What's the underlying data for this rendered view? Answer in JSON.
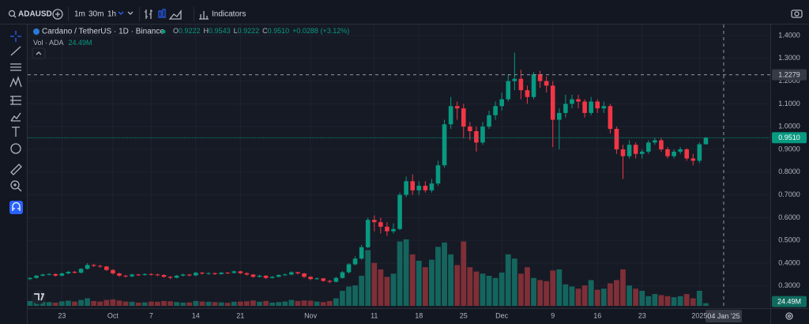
{
  "toolbar": {
    "symbol": "ADAUSD",
    "intervals": [
      "1m",
      "30m",
      "1h"
    ],
    "indicators": "Indicators"
  },
  "chart_data": {
    "type": "candlestick",
    "title": "Cardano / TetherUS · 1D · Binance",
    "legend_values": [
      {
        "key": "O",
        "value": "0.9222"
      },
      {
        "key": "H",
        "value": "0.9543"
      },
      {
        "key": "L",
        "value": "0.9222"
      },
      {
        "key": "C",
        "value": "0.9510"
      }
    ],
    "change": "+0.0288 (+3.12%)",
    "last_price_label": "0.9510",
    "up_color": "#089981",
    "down_color": "#f23645",
    "categories": [
      null,
      null,
      null,
      null,
      null,
      "23",
      null,
      null,
      null,
      null,
      null,
      null,
      null,
      "Oct",
      null,
      null,
      null,
      null,
      null,
      "7",
      null,
      null,
      null,
      null,
      null,
      null,
      "14",
      null,
      null,
      null,
      null,
      null,
      null,
      "21",
      null,
      null,
      null,
      null,
      null,
      null,
      null,
      null,
      null,
      null,
      "Nov",
      null,
      null,
      null,
      null,
      null,
      null,
      null,
      null,
      null,
      "11",
      null,
      null,
      null,
      null,
      null,
      null,
      "18",
      null,
      null,
      null,
      null,
      null,
      null,
      "25",
      null,
      null,
      null,
      null,
      null,
      "Dec",
      null,
      null,
      null,
      null,
      null,
      null,
      null,
      "9",
      null,
      null,
      null,
      null,
      null,
      null,
      "16",
      null,
      null,
      null,
      null,
      null,
      null,
      "23",
      null,
      null,
      null,
      null,
      null,
      null,
      null,
      null,
      "2025",
      null
    ],
    "open": [
      0.33,
      0.335,
      0.345,
      0.35,
      0.352,
      0.345,
      0.355,
      0.362,
      0.358,
      0.375,
      0.392,
      0.388,
      0.385,
      0.37,
      0.355,
      0.345,
      0.342,
      0.35,
      0.348,
      0.352,
      0.35,
      0.348,
      0.34,
      0.336,
      0.345,
      0.35,
      0.346,
      0.358,
      0.354,
      0.356,
      0.352,
      0.358,
      0.357,
      0.364,
      0.356,
      0.35,
      0.34,
      0.345,
      0.335,
      0.34,
      0.348,
      0.35,
      0.36,
      0.355,
      0.34,
      0.33,
      0.333,
      0.322,
      0.318,
      0.335,
      0.36,
      0.395,
      0.42,
      0.47,
      0.59,
      0.58,
      0.56,
      0.54,
      0.55,
      0.7,
      0.76,
      0.72,
      0.74,
      0.72,
      0.75,
      0.83,
      1.01,
      1.09,
      1.08,
      1.0,
      0.98,
      0.93,
      1.0,
      1.05,
      1.09,
      1.12,
      1.2,
      1.21,
      1.16,
      1.13,
      1.23,
      1.2,
      1.18,
      1.03,
      1.06,
      1.1,
      1.12,
      1.11,
      1.06,
      1.11,
      1.08,
      1.09,
      0.99,
      0.9,
      0.87,
      0.92,
      0.88,
      0.89,
      0.93,
      0.94,
      0.9,
      0.87,
      0.89,
      0.9,
      0.86,
      0.85,
      0.9222
    ],
    "high": [
      0.338,
      0.348,
      0.354,
      0.356,
      0.355,
      0.358,
      0.366,
      0.365,
      0.378,
      0.4,
      0.397,
      0.393,
      0.388,
      0.373,
      0.358,
      0.349,
      0.354,
      0.353,
      0.355,
      0.356,
      0.354,
      0.351,
      0.343,
      0.348,
      0.354,
      0.352,
      0.362,
      0.362,
      0.36,
      0.359,
      0.362,
      0.361,
      0.368,
      0.366,
      0.359,
      0.352,
      0.349,
      0.347,
      0.343,
      0.351,
      0.355,
      0.364,
      0.363,
      0.357,
      0.343,
      0.337,
      0.335,
      0.326,
      0.34,
      0.365,
      0.4,
      0.43,
      0.48,
      0.6,
      0.61,
      0.6,
      0.58,
      0.575,
      0.71,
      0.78,
      0.79,
      0.76,
      0.76,
      0.77,
      0.85,
      1.03,
      1.13,
      1.11,
      1.1,
      1.02,
      1.0,
      1.02,
      1.07,
      1.11,
      1.15,
      1.23,
      1.325,
      1.25,
      1.18,
      1.24,
      1.245,
      1.22,
      1.2,
      1.08,
      1.14,
      1.14,
      1.14,
      1.12,
      1.13,
      1.12,
      1.11,
      1.1,
      1.0,
      0.92,
      0.94,
      0.93,
      0.9,
      0.94,
      0.95,
      0.95,
      0.91,
      0.9,
      0.91,
      0.905,
      0.88,
      0.93,
      0.9543
    ],
    "low": [
      0.325,
      0.332,
      0.342,
      0.346,
      0.341,
      0.342,
      0.351,
      0.354,
      0.355,
      0.372,
      0.383,
      0.38,
      0.366,
      0.35,
      0.34,
      0.336,
      0.339,
      0.344,
      0.345,
      0.346,
      0.343,
      0.336,
      0.33,
      0.333,
      0.342,
      0.342,
      0.344,
      0.35,
      0.35,
      0.348,
      0.349,
      0.353,
      0.354,
      0.352,
      0.345,
      0.336,
      0.337,
      0.33,
      0.332,
      0.338,
      0.344,
      0.347,
      0.35,
      0.335,
      0.325,
      0.327,
      0.318,
      0.312,
      0.315,
      0.332,
      0.355,
      0.39,
      0.415,
      0.465,
      0.54,
      0.53,
      0.52,
      0.53,
      0.545,
      0.69,
      0.7,
      0.7,
      0.71,
      0.71,
      0.74,
      0.82,
      0.99,
      1.03,
      0.95,
      0.94,
      0.89,
      0.92,
      0.99,
      1.03,
      1.07,
      1.11,
      1.16,
      1.12,
      1.1,
      1.12,
      1.17,
      1.15,
      0.91,
      0.9,
      1.04,
      1.08,
      1.08,
      1.04,
      1.05,
      1.06,
      1.06,
      0.97,
      0.88,
      0.77,
      0.86,
      0.86,
      0.86,
      0.88,
      0.92,
      0.89,
      0.86,
      0.86,
      0.88,
      0.85,
      0.83,
      0.84,
      0.9222
    ],
    "close": [
      0.335,
      0.345,
      0.35,
      0.352,
      0.345,
      0.355,
      0.362,
      0.358,
      0.375,
      0.392,
      0.388,
      0.385,
      0.37,
      0.355,
      0.345,
      0.342,
      0.35,
      0.348,
      0.352,
      0.35,
      0.348,
      0.34,
      0.336,
      0.345,
      0.35,
      0.346,
      0.358,
      0.354,
      0.356,
      0.352,
      0.358,
      0.357,
      0.364,
      0.356,
      0.35,
      0.34,
      0.345,
      0.335,
      0.34,
      0.348,
      0.35,
      0.36,
      0.355,
      0.34,
      0.33,
      0.333,
      0.322,
      0.318,
      0.335,
      0.36,
      0.395,
      0.42,
      0.47,
      0.59,
      0.58,
      0.56,
      0.54,
      0.55,
      0.7,
      0.76,
      0.72,
      0.74,
      0.72,
      0.75,
      0.83,
      1.01,
      1.09,
      1.08,
      1.0,
      0.98,
      0.93,
      1.0,
      1.05,
      1.09,
      1.12,
      1.2,
      1.21,
      1.16,
      1.13,
      1.23,
      1.2,
      1.18,
      1.03,
      1.06,
      1.1,
      1.12,
      1.11,
      1.06,
      1.11,
      1.08,
      1.09,
      0.99,
      0.9,
      0.87,
      0.92,
      0.88,
      0.89,
      0.93,
      0.94,
      0.9,
      0.87,
      0.89,
      0.9,
      0.86,
      0.85,
      0.9222,
      0.951
    ],
    "volume": {
      "name": "Vol · ADA",
      "last_label": "24.49M",
      "up_color": "#14655d",
      "down_color": "#7e2f37",
      "vlim": [
        0,
        700
      ],
      "values": [
        45,
        40,
        38,
        35,
        30,
        42,
        48,
        40,
        55,
        70,
        45,
        40,
        55,
        60,
        50,
        40,
        38,
        30,
        32,
        40,
        38,
        45,
        42,
        35,
        30,
        32,
        45,
        40,
        38,
        35,
        32,
        28,
        38,
        40,
        42,
        50,
        38,
        45,
        30,
        35,
        40,
        55,
        45,
        50,
        48,
        40,
        35,
        45,
        70,
        140,
        180,
        190,
        280,
        520,
        400,
        340,
        270,
        300,
        600,
        620,
        480,
        420,
        360,
        430,
        550,
        590,
        480,
        380,
        600,
        360,
        320,
        300,
        280,
        260,
        310,
        480,
        440,
        300,
        360,
        260,
        240,
        230,
        330,
        340,
        200,
        180,
        160,
        190,
        240,
        150,
        160,
        210,
        240,
        340,
        190,
        160,
        140,
        90,
        110,
        100,
        90,
        80,
        90,
        110,
        70,
        140,
        24.49
      ]
    },
    "ylim": [
      0.2,
      1.45
    ],
    "yticks": [
      {
        "value": 0.3,
        "label": "0.3000"
      },
      {
        "value": 0.4,
        "label": "0.4000"
      },
      {
        "value": 0.5,
        "label": "0.5000"
      },
      {
        "value": 0.6,
        "label": "0.6000"
      },
      {
        "value": 0.7,
        "label": "0.7000"
      },
      {
        "value": 0.8,
        "label": "0.8000"
      },
      {
        "value": 0.9,
        "label": "0.9000"
      },
      {
        "value": 1.0,
        "label": "1.0000"
      },
      {
        "value": 1.1,
        "label": "1.1000"
      },
      {
        "value": 1.2,
        "label": "1.2000"
      },
      {
        "value": 1.3,
        "label": "1.3000"
      },
      {
        "value": 1.4,
        "label": "1.4000"
      }
    ],
    "grid": true,
    "crosshair": {
      "price": 1.2279,
      "date_label": "04 Jan '25"
    }
  }
}
